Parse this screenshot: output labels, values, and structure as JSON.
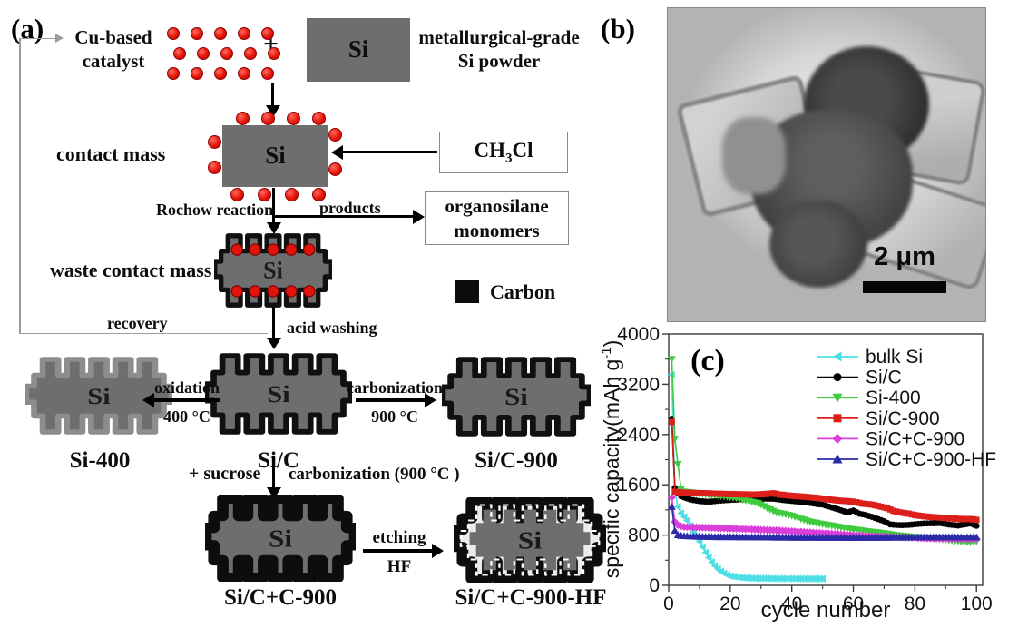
{
  "panel_a": {
    "label": "(a)",
    "catalyst_line1": "Cu-based",
    "catalyst_line2": "catalyst",
    "plus": "+",
    "si": "Si",
    "powder_line1": "metallurgical-grade",
    "powder_line2": "Si powder",
    "contact_mass": "contact  mass",
    "ch3cl_pre": "CH",
    "ch3cl_sub": "3",
    "ch3cl_post": "Cl",
    "rochow": "Rochow reaction",
    "products": "products",
    "organosilane_line1": "organosilane",
    "organosilane_line2": "monomers",
    "waste_contact_mass": "waste contact mass",
    "carbon": "Carbon",
    "recovery": "recovery",
    "acid_washing": "acid washing",
    "oxidation_line1": "oxidation",
    "oxidation_line2": "400 °C",
    "carbonization_line1": "carbonization",
    "carbonization_line2": "900 °C",
    "label_si400": "Si-400",
    "label_sic": "Si/C",
    "label_sic900": "Si/C-900",
    "plus_sucrose": "+ sucrose",
    "carbonization_900_full": "carbonization (900 °C )",
    "label_sicc900": "Si/C+C-900",
    "etching_line1": "etching",
    "etching_line2": "HF",
    "label_sicc900hf": "Si/C+C-900-HF",
    "colors": {
      "si_gray": "#6e6e6e",
      "dot_red": "#e0140c",
      "outline_black": "#0d0d0d"
    }
  },
  "panel_b": {
    "label": "(b)",
    "scale_bar_text": "2 μm"
  },
  "chart_data": {
    "type": "line",
    "panel_label": "(c)",
    "xlabel": "cycle number",
    "ylabel_pre": "specific capacity(mAh g",
    "ylabel_sup": "-1",
    "ylabel_post": ")",
    "xlim": [
      0,
      102
    ],
    "ylim": [
      0,
      4000
    ],
    "xticks": [
      0,
      20,
      40,
      60,
      80,
      100
    ],
    "xticks_minor": [
      10,
      30,
      50,
      70,
      90
    ],
    "yticks": [
      0,
      800,
      1600,
      2400,
      3200,
      4000
    ],
    "yticks_minor": [
      400,
      1200,
      2000,
      2800,
      3600
    ],
    "grid": false,
    "legend_position": "top-right",
    "series": [
      {
        "name": "bulk Si",
        "color": "#4edfe6",
        "marker": "triangle-left",
        "points": [
          [
            1,
            3350
          ],
          [
            2,
            1500
          ],
          [
            3,
            1250
          ],
          [
            4,
            1150
          ],
          [
            5,
            1090
          ],
          [
            6,
            1030
          ],
          [
            7,
            950
          ],
          [
            8,
            850
          ],
          [
            9,
            780
          ],
          [
            10,
            700
          ],
          [
            11,
            610
          ],
          [
            12,
            520
          ],
          [
            13,
            440
          ],
          [
            14,
            370
          ],
          [
            15,
            310
          ],
          [
            16,
            260
          ],
          [
            17,
            220
          ],
          [
            18,
            190
          ],
          [
            19,
            165
          ],
          [
            20,
            148
          ],
          [
            23,
            125
          ],
          [
            26,
            115
          ],
          [
            30,
            110
          ],
          [
            35,
            108
          ],
          [
            40,
            106
          ],
          [
            45,
            105
          ],
          [
            50,
            105
          ]
        ]
      },
      {
        "name": "Si/C",
        "color": "#000000",
        "marker": "circle",
        "points": [
          [
            1,
            2650
          ],
          [
            2,
            1550
          ],
          [
            3,
            1470
          ],
          [
            4,
            1420
          ],
          [
            5,
            1400
          ],
          [
            7,
            1365
          ],
          [
            10,
            1340
          ],
          [
            13,
            1330
          ],
          [
            16,
            1345
          ],
          [
            20,
            1360
          ],
          [
            25,
            1370
          ],
          [
            30,
            1380
          ],
          [
            34,
            1378
          ],
          [
            38,
            1352
          ],
          [
            42,
            1333
          ],
          [
            45,
            1320
          ],
          [
            48,
            1295
          ],
          [
            50,
            1285
          ],
          [
            53,
            1240
          ],
          [
            56,
            1195
          ],
          [
            58,
            1160
          ],
          [
            60,
            1190
          ],
          [
            62,
            1140
          ],
          [
            64,
            1120
          ],
          [
            66,
            1090
          ],
          [
            68,
            1055
          ],
          [
            70,
            1020
          ],
          [
            72,
            970
          ],
          [
            74,
            960
          ],
          [
            76,
            958
          ],
          [
            78,
            962
          ],
          [
            80,
            972
          ],
          [
            83,
            985
          ],
          [
            86,
            988
          ],
          [
            88,
            992
          ],
          [
            90,
            975
          ],
          [
            92,
            962
          ],
          [
            94,
            952
          ],
          [
            96,
            968
          ],
          [
            98,
            985
          ],
          [
            100,
            948
          ]
        ]
      },
      {
        "name": "Si-400",
        "color": "#3ecb3e",
        "marker": "triangle-down",
        "points": [
          [
            1,
            3600
          ],
          [
            2,
            2330
          ],
          [
            3,
            1930
          ],
          [
            4,
            1530
          ],
          [
            5,
            1490
          ],
          [
            7,
            1480
          ],
          [
            10,
            1458
          ],
          [
            14,
            1438
          ],
          [
            18,
            1418
          ],
          [
            22,
            1388
          ],
          [
            26,
            1340
          ],
          [
            29,
            1308
          ],
          [
            31,
            1258
          ],
          [
            33,
            1208
          ],
          [
            35,
            1160
          ],
          [
            38,
            1130
          ],
          [
            40,
            1108
          ],
          [
            43,
            1058
          ],
          [
            46,
            1012
          ],
          [
            50,
            975
          ],
          [
            54,
            942
          ],
          [
            58,
            905
          ],
          [
            62,
            878
          ],
          [
            66,
            852
          ],
          [
            70,
            828
          ],
          [
            74,
            798
          ],
          [
            78,
            778
          ],
          [
            82,
            762
          ],
          [
            86,
            742
          ],
          [
            90,
            728
          ],
          [
            94,
            702
          ],
          [
            97,
            688
          ],
          [
            100,
            700
          ]
        ]
      },
      {
        "name": "Si/C-900",
        "color": "#dd1f1a",
        "marker": "square",
        "points": [
          [
            1,
            2600
          ],
          [
            2,
            1490
          ],
          [
            4,
            1478
          ],
          [
            8,
            1470
          ],
          [
            12,
            1465
          ],
          [
            16,
            1458
          ],
          [
            20,
            1452
          ],
          [
            24,
            1448
          ],
          [
            28,
            1445
          ],
          [
            31,
            1452
          ],
          [
            34,
            1465
          ],
          [
            36,
            1445
          ],
          [
            40,
            1425
          ],
          [
            44,
            1410
          ],
          [
            48,
            1392
          ],
          [
            52,
            1368
          ],
          [
            55,
            1350
          ],
          [
            58,
            1340
          ],
          [
            60,
            1332
          ],
          [
            63,
            1300
          ],
          [
            66,
            1285
          ],
          [
            69,
            1252
          ],
          [
            71,
            1228
          ],
          [
            73,
            1185
          ],
          [
            75,
            1162
          ],
          [
            78,
            1140
          ],
          [
            80,
            1118
          ],
          [
            83,
            1098
          ],
          [
            86,
            1085
          ],
          [
            89,
            1075
          ],
          [
            92,
            1065
          ],
          [
            95,
            1055
          ],
          [
            98,
            1055
          ],
          [
            100,
            1042
          ]
        ]
      },
      {
        "name": "Si/C+C-900",
        "color": "#da3fda",
        "marker": "diamond",
        "points": [
          [
            1,
            1400
          ],
          [
            2,
            1010
          ],
          [
            3,
            958
          ],
          [
            4,
            940
          ],
          [
            5,
            930
          ],
          [
            8,
            925
          ],
          [
            12,
            918
          ],
          [
            16,
            912
          ],
          [
            20,
            905
          ],
          [
            25,
            895
          ],
          [
            30,
            885
          ],
          [
            35,
            875
          ],
          [
            40,
            862
          ],
          [
            45,
            845
          ],
          [
            50,
            830
          ],
          [
            55,
            815
          ],
          [
            60,
            800
          ],
          [
            65,
            786
          ],
          [
            70,
            775
          ],
          [
            75,
            765
          ],
          [
            80,
            755
          ],
          [
            85,
            748
          ],
          [
            90,
            744
          ],
          [
            95,
            740
          ],
          [
            100,
            738
          ]
        ]
      },
      {
        "name": "Si/C+C-900-HF",
        "color": "#2b2ba8",
        "marker": "triangle-up",
        "points": [
          [
            1,
            1250
          ],
          [
            2,
            870
          ],
          [
            3,
            800
          ],
          [
            4,
            790
          ],
          [
            5,
            785
          ],
          [
            10,
            775
          ],
          [
            15,
            770
          ],
          [
            20,
            769
          ],
          [
            30,
            764
          ],
          [
            40,
            761
          ],
          [
            50,
            759
          ],
          [
            60,
            757
          ],
          [
            70,
            760
          ],
          [
            80,
            764
          ],
          [
            90,
            767
          ],
          [
            100,
            764
          ]
        ]
      }
    ]
  }
}
